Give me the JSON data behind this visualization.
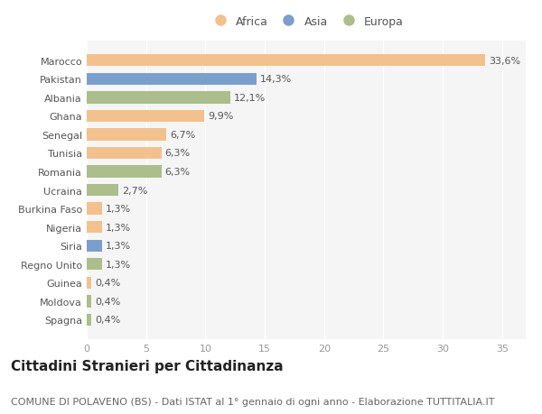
{
  "categories": [
    "Marocco",
    "Pakistan",
    "Albania",
    "Ghana",
    "Senegal",
    "Tunisia",
    "Romania",
    "Ucraina",
    "Burkina Faso",
    "Nigeria",
    "Siria",
    "Regno Unito",
    "Guinea",
    "Moldova",
    "Spagna"
  ],
  "values": [
    33.6,
    14.3,
    12.1,
    9.9,
    6.7,
    6.3,
    6.3,
    2.7,
    1.3,
    1.3,
    1.3,
    1.3,
    0.4,
    0.4,
    0.4
  ],
  "labels": [
    "33,6%",
    "14,3%",
    "12,1%",
    "9,9%",
    "6,7%",
    "6,3%",
    "6,3%",
    "2,7%",
    "1,3%",
    "1,3%",
    "1,3%",
    "1,3%",
    "0,4%",
    "0,4%",
    "0,4%"
  ],
  "continents": [
    "Africa",
    "Asia",
    "Europa",
    "Africa",
    "Africa",
    "Africa",
    "Europa",
    "Europa",
    "Africa",
    "Africa",
    "Asia",
    "Europa",
    "Africa",
    "Europa",
    "Europa"
  ],
  "colors": {
    "Africa": "#F2C18D",
    "Asia": "#7B9FCC",
    "Europa": "#ABBE8B"
  },
  "legend_labels": [
    "Africa",
    "Asia",
    "Europa"
  ],
  "xlim": [
    0,
    37
  ],
  "xticks": [
    0,
    5,
    10,
    15,
    20,
    25,
    30,
    35
  ],
  "title": "Cittadini Stranieri per Cittadinanza",
  "subtitle": "COMUNE DI POLAVENO (BS) - Dati ISTAT al 1° gennaio di ogni anno - Elaborazione TUTTITALIA.IT",
  "bg_color": "#ffffff",
  "plot_bg_color": "#f5f5f5",
  "bar_height": 0.65,
  "title_fontsize": 11,
  "subtitle_fontsize": 8,
  "tick_fontsize": 8,
  "label_fontsize": 8
}
